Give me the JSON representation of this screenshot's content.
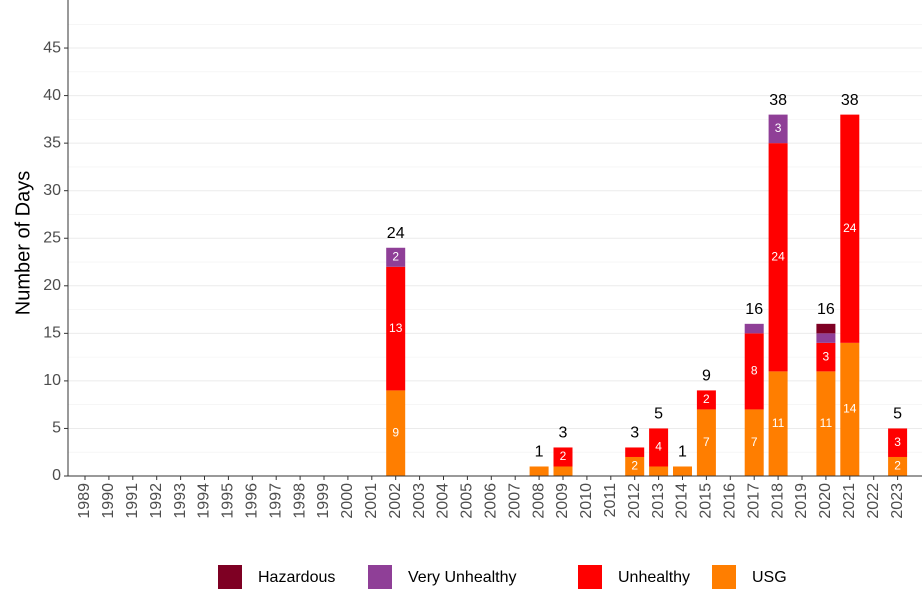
{
  "chart_data": {
    "type": "stacked_bar",
    "y_label": "Number of Days",
    "categories": [
      "1989",
      "1990",
      "1991",
      "1992",
      "1993",
      "1994",
      "1995",
      "1996",
      "1997",
      "1998",
      "1999",
      "2000",
      "2001",
      "2002",
      "2003",
      "2004",
      "2005",
      "2006",
      "2007",
      "2008",
      "2009",
      "2010",
      "2011",
      "2012",
      "2013",
      "2014",
      "2015",
      "2016",
      "2017",
      "2018",
      "2019",
      "2020",
      "2021",
      "2022",
      "2023"
    ],
    "series": [
      {
        "name": "Hazardous",
        "color": "#7e0023",
        "values": [
          0,
          0,
          0,
          0,
          0,
          0,
          0,
          0,
          0,
          0,
          0,
          0,
          0,
          0,
          0,
          0,
          0,
          0,
          0,
          0,
          0,
          0,
          0,
          0,
          0,
          0,
          0,
          0,
          0,
          0,
          0,
          1,
          0,
          0,
          0
        ],
        "value_labels": [
          null,
          null,
          null,
          null,
          null,
          null,
          null,
          null,
          null,
          null,
          null,
          null,
          null,
          null,
          null,
          null,
          null,
          null,
          null,
          null,
          null,
          null,
          null,
          null,
          null,
          null,
          null,
          null,
          null,
          null,
          null,
          null,
          null,
          null,
          null
        ]
      },
      {
        "name": "Very Unhealthy",
        "color": "#8f3f97",
        "values": [
          0,
          0,
          0,
          0,
          0,
          0,
          0,
          0,
          0,
          0,
          0,
          0,
          0,
          2,
          0,
          0,
          0,
          0,
          0,
          0,
          0,
          0,
          0,
          0,
          0,
          0,
          0,
          0,
          1,
          3,
          0,
          1,
          0,
          0,
          0
        ],
        "value_labels": [
          null,
          null,
          null,
          null,
          null,
          null,
          null,
          null,
          null,
          null,
          null,
          null,
          null,
          "2",
          null,
          null,
          null,
          null,
          null,
          null,
          null,
          null,
          null,
          null,
          null,
          null,
          null,
          null,
          null,
          "3",
          null,
          null,
          null,
          null,
          null
        ]
      },
      {
        "name": "Unhealthy",
        "color": "#ff0000",
        "values": [
          0,
          0,
          0,
          0,
          0,
          0,
          0,
          0,
          0,
          0,
          0,
          0,
          0,
          13,
          0,
          0,
          0,
          0,
          0,
          0,
          2,
          0,
          0,
          1,
          4,
          0,
          2,
          0,
          8,
          24,
          0,
          3,
          24,
          0,
          3
        ],
        "value_labels": [
          null,
          null,
          null,
          null,
          null,
          null,
          null,
          null,
          null,
          null,
          null,
          null,
          null,
          "13",
          null,
          null,
          null,
          null,
          null,
          null,
          "2",
          null,
          null,
          null,
          "4",
          null,
          "2",
          null,
          "8",
          "24",
          null,
          "3",
          "24",
          null,
          "3"
        ]
      },
      {
        "name": "USG",
        "color": "#ff7e00",
        "values": [
          0,
          0,
          0,
          0,
          0,
          0,
          0,
          0,
          0,
          0,
          0,
          0,
          0,
          9,
          0,
          0,
          0,
          0,
          0,
          1,
          1,
          0,
          0,
          2,
          1,
          1,
          7,
          0,
          7,
          11,
          0,
          11,
          14,
          0,
          2
        ],
        "value_labels": [
          null,
          null,
          null,
          null,
          null,
          null,
          null,
          null,
          null,
          null,
          null,
          null,
          null,
          "9",
          null,
          null,
          null,
          null,
          null,
          null,
          null,
          null,
          null,
          "2",
          null,
          null,
          "7",
          null,
          "7",
          "11",
          null,
          "11",
          "14",
          null,
          "2"
        ]
      }
    ],
    "totals": [
      null,
      null,
      null,
      null,
      null,
      null,
      null,
      null,
      null,
      null,
      null,
      null,
      null,
      24,
      null,
      null,
      null,
      null,
      null,
      1,
      3,
      null,
      null,
      3,
      5,
      1,
      9,
      null,
      16,
      38,
      null,
      16,
      38,
      null,
      5
    ],
    "ylim": [
      0,
      49
    ],
    "yticks": [
      0,
      5,
      10,
      15,
      20,
      25,
      30,
      35,
      40,
      45
    ],
    "minor_yticks": [
      2.5,
      7.5,
      12.5,
      17.5,
      22.5,
      27.5,
      32.5,
      37.5,
      42.5,
      47.5
    ],
    "grid": true,
    "legend": "bottom"
  }
}
